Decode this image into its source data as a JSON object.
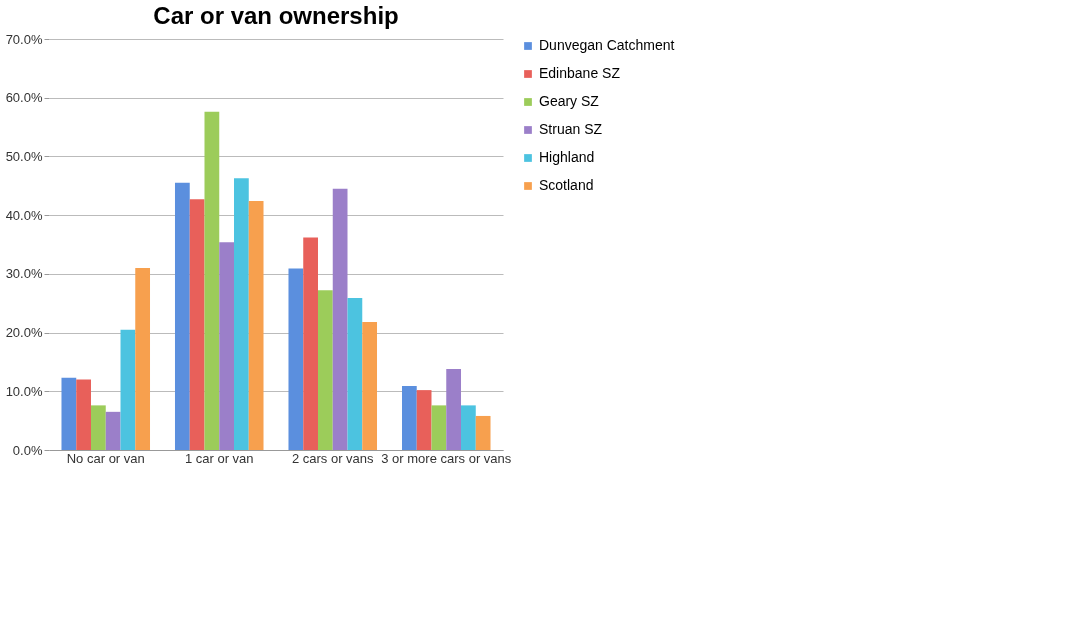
{
  "chart_data": {
    "type": "bar",
    "title": "Car or van ownership",
    "categories": [
      "No car or van",
      "1 car or van",
      "2 cars or vans",
      "3 or more cars or vans"
    ],
    "series": [
      {
        "name": "Dunvegan Catchment",
        "color": "#5b8fde",
        "values": [
          12.3,
          45.5,
          30.9,
          10.9
        ]
      },
      {
        "name": "Edinbane SZ",
        "color": "#e8605a",
        "values": [
          12.0,
          42.7,
          36.2,
          10.2
        ]
      },
      {
        "name": "Geary SZ",
        "color": "#9ccc5a",
        "values": [
          7.6,
          57.6,
          27.2,
          7.6
        ]
      },
      {
        "name": "Struan SZ",
        "color": "#9b7fc9",
        "values": [
          6.5,
          35.4,
          44.5,
          13.8
        ]
      },
      {
        "name": "Highland",
        "color": "#4cc3e0",
        "values": [
          20.5,
          46.3,
          25.9,
          7.6
        ]
      },
      {
        "name": "Scotland",
        "color": "#f7a04e",
        "values": [
          31.0,
          42.4,
          21.8,
          5.8
        ]
      }
    ],
    "ylim": [
      0,
      70
    ],
    "yticks": [
      {
        "value": 0,
        "label": "0.0%"
      },
      {
        "value": 10,
        "label": "10.0%"
      },
      {
        "value": 20,
        "label": "20.0%"
      },
      {
        "value": 30,
        "label": "30.0%"
      },
      {
        "value": 40,
        "label": "40.0%"
      },
      {
        "value": 50,
        "label": "50.0%"
      },
      {
        "value": 60,
        "label": "60.0%"
      },
      {
        "value": 70,
        "label": "70.0%"
      }
    ],
    "grid": "y",
    "legend": "right"
  }
}
